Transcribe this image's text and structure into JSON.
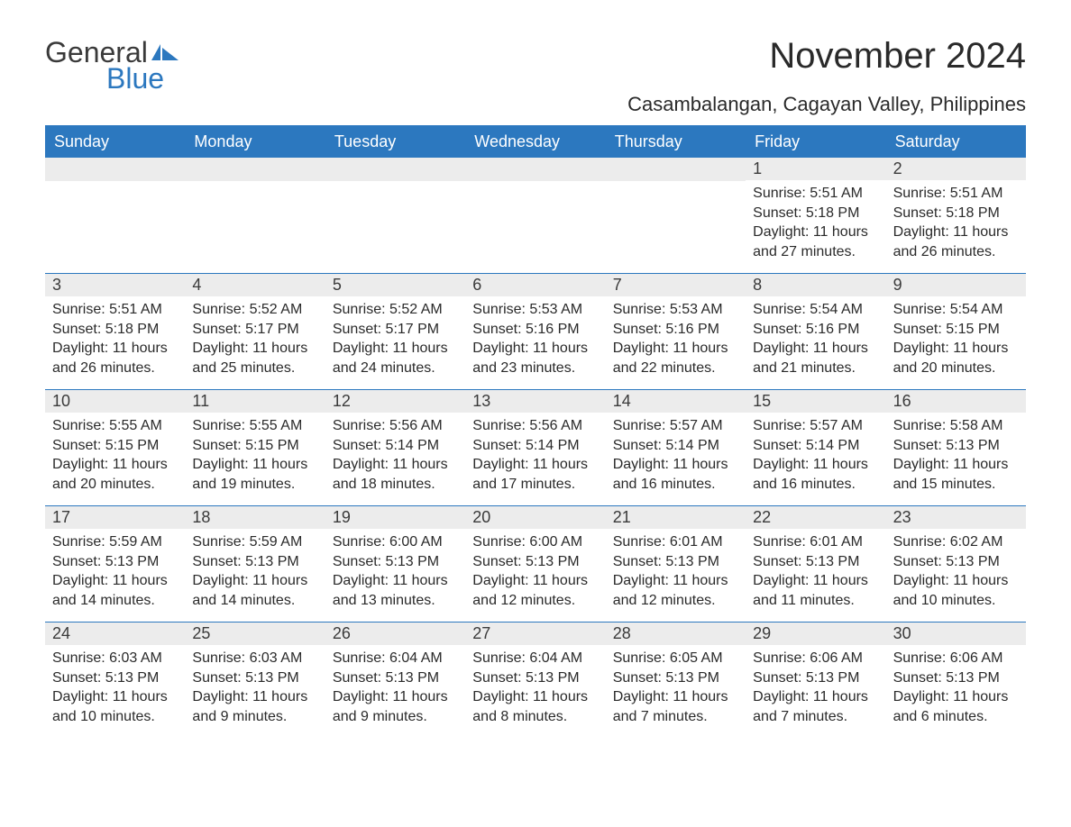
{
  "brand": {
    "name_part1": "General",
    "name_part2": "Blue",
    "text_color": "#3a3a3a",
    "accent_color": "#2c78bf"
  },
  "header": {
    "month_title": "November 2024",
    "location": "Casambalangan, Cagayan Valley, Philippines",
    "title_fontsize": 40,
    "location_fontsize": 22
  },
  "calendar": {
    "weekdays": [
      "Sunday",
      "Monday",
      "Tuesday",
      "Wednesday",
      "Thursday",
      "Friday",
      "Saturday"
    ],
    "header_bg": "#2c78bf",
    "header_text": "#ffffff",
    "daybar_bg": "#ececec",
    "rule_color": "#2c78bf",
    "body_text_color": "#2a2a2a",
    "body_fontsize": 16,
    "weeks": [
      [
        {
          "day": "",
          "sunrise": "",
          "sunset": "",
          "daylight": ""
        },
        {
          "day": "",
          "sunrise": "",
          "sunset": "",
          "daylight": ""
        },
        {
          "day": "",
          "sunrise": "",
          "sunset": "",
          "daylight": ""
        },
        {
          "day": "",
          "sunrise": "",
          "sunset": "",
          "daylight": ""
        },
        {
          "day": "",
          "sunrise": "",
          "sunset": "",
          "daylight": ""
        },
        {
          "day": "1",
          "sunrise": "Sunrise: 5:51 AM",
          "sunset": "Sunset: 5:18 PM",
          "daylight": "Daylight: 11 hours and 27 minutes."
        },
        {
          "day": "2",
          "sunrise": "Sunrise: 5:51 AM",
          "sunset": "Sunset: 5:18 PM",
          "daylight": "Daylight: 11 hours and 26 minutes."
        }
      ],
      [
        {
          "day": "3",
          "sunrise": "Sunrise: 5:51 AM",
          "sunset": "Sunset: 5:18 PM",
          "daylight": "Daylight: 11 hours and 26 minutes."
        },
        {
          "day": "4",
          "sunrise": "Sunrise: 5:52 AM",
          "sunset": "Sunset: 5:17 PM",
          "daylight": "Daylight: 11 hours and 25 minutes."
        },
        {
          "day": "5",
          "sunrise": "Sunrise: 5:52 AM",
          "sunset": "Sunset: 5:17 PM",
          "daylight": "Daylight: 11 hours and 24 minutes."
        },
        {
          "day": "6",
          "sunrise": "Sunrise: 5:53 AM",
          "sunset": "Sunset: 5:16 PM",
          "daylight": "Daylight: 11 hours and 23 minutes."
        },
        {
          "day": "7",
          "sunrise": "Sunrise: 5:53 AM",
          "sunset": "Sunset: 5:16 PM",
          "daylight": "Daylight: 11 hours and 22 minutes."
        },
        {
          "day": "8",
          "sunrise": "Sunrise: 5:54 AM",
          "sunset": "Sunset: 5:16 PM",
          "daylight": "Daylight: 11 hours and 21 minutes."
        },
        {
          "day": "9",
          "sunrise": "Sunrise: 5:54 AM",
          "sunset": "Sunset: 5:15 PM",
          "daylight": "Daylight: 11 hours and 20 minutes."
        }
      ],
      [
        {
          "day": "10",
          "sunrise": "Sunrise: 5:55 AM",
          "sunset": "Sunset: 5:15 PM",
          "daylight": "Daylight: 11 hours and 20 minutes."
        },
        {
          "day": "11",
          "sunrise": "Sunrise: 5:55 AM",
          "sunset": "Sunset: 5:15 PM",
          "daylight": "Daylight: 11 hours and 19 minutes."
        },
        {
          "day": "12",
          "sunrise": "Sunrise: 5:56 AM",
          "sunset": "Sunset: 5:14 PM",
          "daylight": "Daylight: 11 hours and 18 minutes."
        },
        {
          "day": "13",
          "sunrise": "Sunrise: 5:56 AM",
          "sunset": "Sunset: 5:14 PM",
          "daylight": "Daylight: 11 hours and 17 minutes."
        },
        {
          "day": "14",
          "sunrise": "Sunrise: 5:57 AM",
          "sunset": "Sunset: 5:14 PM",
          "daylight": "Daylight: 11 hours and 16 minutes."
        },
        {
          "day": "15",
          "sunrise": "Sunrise: 5:57 AM",
          "sunset": "Sunset: 5:14 PM",
          "daylight": "Daylight: 11 hours and 16 minutes."
        },
        {
          "day": "16",
          "sunrise": "Sunrise: 5:58 AM",
          "sunset": "Sunset: 5:13 PM",
          "daylight": "Daylight: 11 hours and 15 minutes."
        }
      ],
      [
        {
          "day": "17",
          "sunrise": "Sunrise: 5:59 AM",
          "sunset": "Sunset: 5:13 PM",
          "daylight": "Daylight: 11 hours and 14 minutes."
        },
        {
          "day": "18",
          "sunrise": "Sunrise: 5:59 AM",
          "sunset": "Sunset: 5:13 PM",
          "daylight": "Daylight: 11 hours and 14 minutes."
        },
        {
          "day": "19",
          "sunrise": "Sunrise: 6:00 AM",
          "sunset": "Sunset: 5:13 PM",
          "daylight": "Daylight: 11 hours and 13 minutes."
        },
        {
          "day": "20",
          "sunrise": "Sunrise: 6:00 AM",
          "sunset": "Sunset: 5:13 PM",
          "daylight": "Daylight: 11 hours and 12 minutes."
        },
        {
          "day": "21",
          "sunrise": "Sunrise: 6:01 AM",
          "sunset": "Sunset: 5:13 PM",
          "daylight": "Daylight: 11 hours and 12 minutes."
        },
        {
          "day": "22",
          "sunrise": "Sunrise: 6:01 AM",
          "sunset": "Sunset: 5:13 PM",
          "daylight": "Daylight: 11 hours and 11 minutes."
        },
        {
          "day": "23",
          "sunrise": "Sunrise: 6:02 AM",
          "sunset": "Sunset: 5:13 PM",
          "daylight": "Daylight: 11 hours and 10 minutes."
        }
      ],
      [
        {
          "day": "24",
          "sunrise": "Sunrise: 6:03 AM",
          "sunset": "Sunset: 5:13 PM",
          "daylight": "Daylight: 11 hours and 10 minutes."
        },
        {
          "day": "25",
          "sunrise": "Sunrise: 6:03 AM",
          "sunset": "Sunset: 5:13 PM",
          "daylight": "Daylight: 11 hours and 9 minutes."
        },
        {
          "day": "26",
          "sunrise": "Sunrise: 6:04 AM",
          "sunset": "Sunset: 5:13 PM",
          "daylight": "Daylight: 11 hours and 9 minutes."
        },
        {
          "day": "27",
          "sunrise": "Sunrise: 6:04 AM",
          "sunset": "Sunset: 5:13 PM",
          "daylight": "Daylight: 11 hours and 8 minutes."
        },
        {
          "day": "28",
          "sunrise": "Sunrise: 6:05 AM",
          "sunset": "Sunset: 5:13 PM",
          "daylight": "Daylight: 11 hours and 7 minutes."
        },
        {
          "day": "29",
          "sunrise": "Sunrise: 6:06 AM",
          "sunset": "Sunset: 5:13 PM",
          "daylight": "Daylight: 11 hours and 7 minutes."
        },
        {
          "day": "30",
          "sunrise": "Sunrise: 6:06 AM",
          "sunset": "Sunset: 5:13 PM",
          "daylight": "Daylight: 11 hours and 6 minutes."
        }
      ]
    ]
  }
}
